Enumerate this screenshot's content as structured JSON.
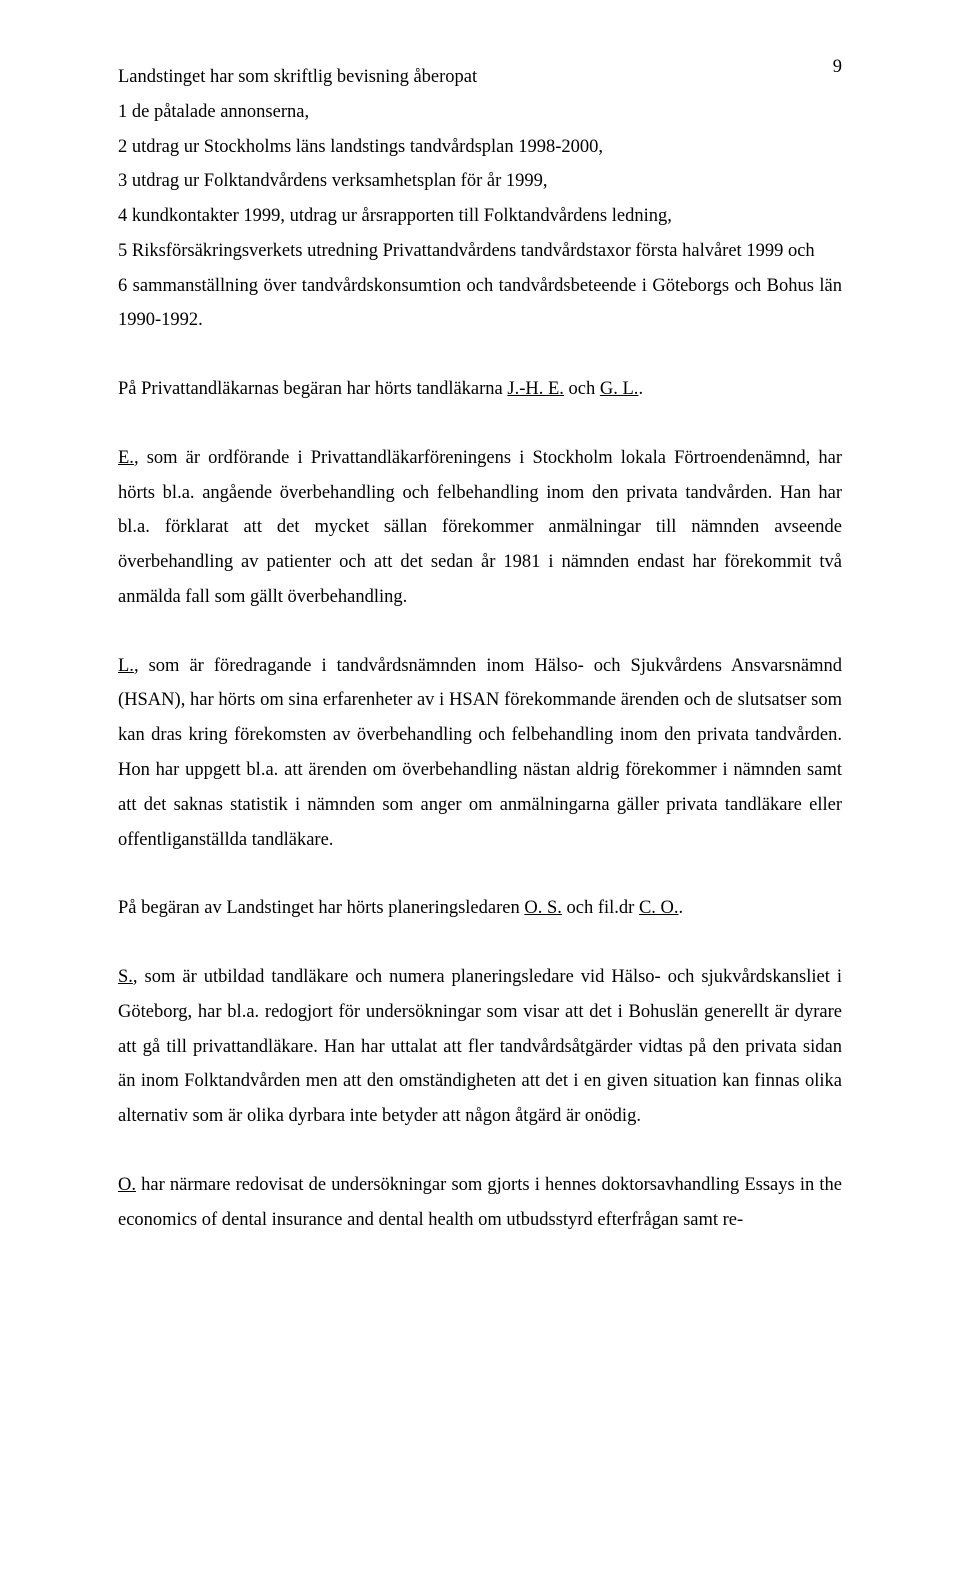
{
  "page_number": "9",
  "list_intro": "Landstinget har som skriftlig bevisning åberopat",
  "list_items": [
    "1 de påtalade annonserna,",
    "2 utdrag ur Stockholms läns landstings tandvårdsplan 1998-2000,",
    "3 utdrag ur Folktandvårdens verksamhetsplan för år 1999,",
    "4 kundkontakter 1999, utdrag ur årsrapporten till Folktandvårdens ledning,",
    "5 Riksförsäkringsverkets utredning Privattandvårdens tandvårdstaxor första halvåret 1999 och",
    "6 sammanställning över tandvårdskonsumtion och tandvårdsbeteende i Göteborgs och Bohus län 1990-1992."
  ],
  "p_horts": {
    "pre": "På Privattandläkarnas begäran har hörts tandläkarna ",
    "n1": "J.-H. E.",
    "mid": " och ",
    "n2": "G. L.",
    "post": "."
  },
  "p_e": {
    "n": "E.",
    "rest": ", som är ordförande i Privattandläkarföreningens i Stockholm lokala Förtroendenämnd, har hörts bl.a. angående överbehandling och felbehandling inom den privata tandvården. Han har bl.a. förklarat att det mycket sällan förekommer anmälningar till nämnden avseende överbehandling av patienter och att det sedan år 1981 i nämnden endast har förekommit två anmälda fall som gällt överbehandling."
  },
  "p_l": {
    "n": "L.",
    "rest": ", som är föredragande i tandvårdsnämnden inom Hälso- och Sjukvårdens Ansvarsnämnd (HSAN), har hörts om sina erfarenheter av i HSAN förekommande ärenden och de slutsatser som kan dras kring förekomsten av överbehandling och felbehandling inom den privata tandvården. Hon har uppgett bl.a. att ärenden om överbehandling nästan aldrig förekommer i nämnden samt att det saknas statistik i nämnden som anger om anmälningarna gäller privata tandläkare eller  offentliganställda tandläkare."
  },
  "p_begaran": {
    "pre": "På begäran av Landstinget har hörts planeringsledaren ",
    "n1": "O. S.",
    "mid": " och fil.dr ",
    "n2": "C. O.",
    "post": "."
  },
  "p_s": {
    "n": "S.",
    "rest": ", som är utbildad tandläkare och numera planeringsledare vid Hälso- och sjukvårdskansliet i Göteborg, har bl.a. redogjort för undersökningar som visar att det i Bohuslän generellt är dyrare att gå till privattandläkare. Han har uttalat att fler tandvårdsåtgärder vidtas på den privata sidan än inom Folktandvården men att den omständigheten att det i en given situation kan finnas olika alternativ som är olika dyrbara inte betyder att någon åtgärd är onödig."
  },
  "p_o": {
    "n": "O.",
    "rest": " har närmare redovisat de undersökningar som gjorts i hennes doktorsavhandling Essays in the economics of dental insurance and dental health om utbudsstyrd efterfrågan samt re-"
  }
}
